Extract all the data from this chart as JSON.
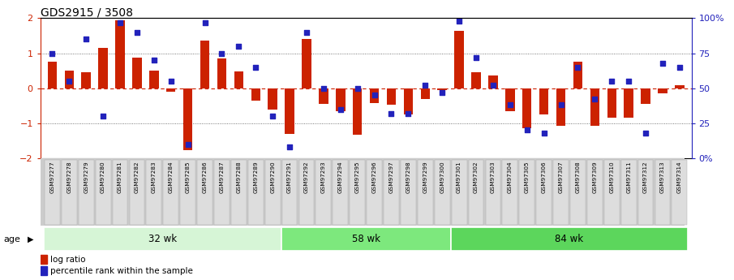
{
  "title": "GDS2915 / 3508",
  "samples": [
    "GSM97277",
    "GSM97278",
    "GSM97279",
    "GSM97280",
    "GSM97281",
    "GSM97282",
    "GSM97283",
    "GSM97284",
    "GSM97285",
    "GSM97286",
    "GSM97287",
    "GSM97288",
    "GSM97289",
    "GSM97290",
    "GSM97291",
    "GSM97292",
    "GSM97293",
    "GSM97294",
    "GSM97295",
    "GSM97296",
    "GSM97297",
    "GSM97298",
    "GSM97299",
    "GSM97300",
    "GSM97301",
    "GSM97302",
    "GSM97303",
    "GSM97304",
    "GSM97305",
    "GSM97306",
    "GSM97307",
    "GSM97308",
    "GSM97309",
    "GSM97310",
    "GSM97311",
    "GSM97312",
    "GSM97313",
    "GSM97314"
  ],
  "log_ratio": [
    0.75,
    0.5,
    0.45,
    1.15,
    1.93,
    0.87,
    0.5,
    -0.1,
    -1.78,
    1.35,
    0.85,
    0.48,
    -0.35,
    -0.62,
    -1.3,
    1.4,
    -0.45,
    -0.65,
    -1.32,
    -0.42,
    -0.48,
    -0.75,
    -0.3,
    -0.05,
    1.65,
    0.45,
    0.36,
    -0.65,
    -1.15,
    -0.75,
    -1.08,
    0.76,
    -1.08,
    -0.85,
    -0.85,
    -0.45,
    -0.15,
    0.08
  ],
  "percentile": [
    75,
    55,
    85,
    30,
    97,
    90,
    70,
    55,
    10,
    97,
    75,
    80,
    65,
    30,
    8,
    90,
    50,
    35,
    50,
    45,
    32,
    32,
    52,
    47,
    98,
    72,
    52,
    38,
    20,
    18,
    38,
    65,
    42,
    55,
    55,
    18,
    68,
    65
  ],
  "groups": [
    {
      "label": "32 wk",
      "start": 0,
      "end": 14
    },
    {
      "label": "58 wk",
      "start": 14,
      "end": 24
    },
    {
      "label": "84 wk",
      "start": 24,
      "end": 38
    }
  ],
  "group_colors": [
    "#d6f5d6",
    "#7de87d",
    "#5cd65c"
  ],
  "bar_color": "#cc2200",
  "dot_color": "#2222bb",
  "ylim_left": [
    -2.0,
    2.0
  ],
  "ylim_right": [
    0,
    100
  ],
  "yticks_left": [
    -2,
    -1,
    0,
    1,
    2
  ],
  "yticks_right": [
    0,
    25,
    50,
    75,
    100
  ],
  "right_yticklabels": [
    "0%",
    "25",
    "50",
    "75",
    "100%"
  ],
  "legend_bar_label": "log ratio",
  "legend_dot_label": "percentile rank within the sample",
  "age_label": "age"
}
